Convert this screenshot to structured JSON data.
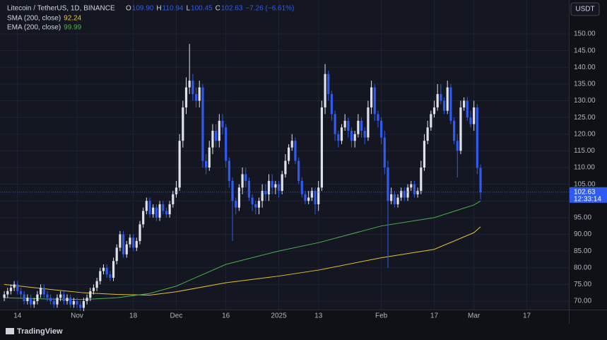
{
  "chart_data": {
    "type": "candlestick",
    "symbol": "Litecoin / TetherUS, 1D, BINANCE",
    "legend": [
      {
        "key": "O",
        "value": "109.90"
      },
      {
        "key": "H",
        "value": "110.94"
      },
      {
        "key": "L",
        "value": "100.45"
      },
      {
        "key": "C",
        "value": "102.63"
      }
    ],
    "change": "−7.26 (−6.61%)",
    "currency": "USDT",
    "countdown": "12:33:14",
    "brand": "TradingView",
    "up_color": "#dfe2ea",
    "down_color": "#2f5bf0",
    "x": [
      -4,
      -3,
      -2,
      -1,
      0,
      1,
      2,
      3,
      4,
      5,
      6,
      7,
      8,
      9,
      10,
      11,
      12,
      13,
      14,
      15,
      16,
      17,
      18,
      19,
      20,
      21,
      22,
      23,
      24,
      25,
      26,
      27,
      28,
      29,
      30,
      31,
      32,
      33,
      34,
      35,
      36,
      37,
      38,
      39,
      40,
      41,
      42,
      43,
      44,
      45,
      46,
      47,
      48,
      49,
      50,
      51,
      52,
      53,
      54,
      55,
      56,
      57,
      58,
      59,
      60,
      61,
      62,
      63,
      64,
      65,
      66,
      67,
      68,
      69,
      70,
      71,
      72,
      73,
      74,
      75,
      76,
      77,
      78,
      79,
      80,
      81,
      82,
      83,
      84,
      85,
      86,
      87,
      88,
      89,
      90,
      91,
      92,
      93,
      94,
      95,
      96,
      97,
      98,
      99,
      100,
      101,
      102,
      103,
      104,
      105,
      106,
      107,
      108,
      109,
      110,
      111,
      112,
      113,
      114,
      115,
      116,
      117,
      118,
      119,
      120,
      121,
      122,
      123,
      124,
      125,
      126,
      127,
      128,
      129,
      130,
      131,
      132,
      133,
      134,
      135,
      136,
      137,
      138,
      139,
      140
    ],
    "open": [
      71,
      72,
      73,
      74,
      75,
      73,
      72,
      70,
      71,
      69,
      70,
      72,
      74,
      72,
      71,
      70,
      69,
      71,
      72,
      70,
      71,
      69,
      70,
      69,
      68,
      70,
      71,
      73,
      74,
      76,
      79,
      80,
      78,
      77,
      82,
      86,
      90,
      84,
      87,
      89,
      86,
      88,
      93,
      97,
      100,
      96,
      98,
      95,
      99,
      97,
      96,
      99,
      102,
      104,
      118,
      128,
      134,
      136,
      132,
      130,
      134,
      112,
      110,
      116,
      121,
      118,
      124,
      122,
      112,
      106,
      100,
      98,
      104,
      108,
      106,
      101,
      99,
      98,
      100,
      103,
      102,
      106,
      104,
      105,
      103,
      108,
      112,
      116,
      118,
      112,
      106,
      102,
      100,
      101,
      103,
      99,
      104,
      128,
      138,
      132,
      126,
      120,
      118,
      122,
      124,
      121,
      118,
      120,
      124,
      121,
      119,
      128,
      134,
      126,
      124,
      119,
      110,
      100,
      102,
      99,
      101,
      103,
      101,
      104,
      105,
      102,
      103,
      110,
      118,
      122,
      126,
      128,
      132,
      130,
      127,
      134,
      124,
      118,
      115,
      128,
      130,
      125,
      123,
      128,
      109.9
    ],
    "high": [
      73,
      74,
      75,
      76,
      76,
      74,
      73,
      72,
      72,
      71,
      73,
      75,
      75,
      73,
      72,
      71,
      72,
      73,
      73,
      72,
      72,
      71,
      71,
      70,
      71,
      72,
      74,
      75,
      77,
      80,
      81,
      81,
      79,
      83,
      87,
      91,
      91,
      88,
      90,
      90,
      89,
      94,
      98,
      101,
      101,
      99,
      99,
      100,
      100,
      98,
      100,
      103,
      106,
      120,
      130,
      137,
      147,
      138,
      134,
      136,
      135,
      114,
      118,
      123,
      123,
      126,
      126,
      123,
      113,
      107,
      101,
      105,
      110,
      110,
      107,
      102,
      100,
      101,
      105,
      105,
      108,
      108,
      106,
      106,
      109,
      114,
      117,
      120,
      119,
      113,
      107,
      103,
      103,
      104,
      104,
      106,
      130,
      141,
      139,
      133,
      127,
      121,
      123,
      126,
      125,
      122,
      121,
      126,
      125,
      122,
      130,
      136,
      135,
      127,
      125,
      121,
      112,
      104,
      103,
      102,
      104,
      104,
      105,
      106,
      106,
      104,
      112,
      120,
      124,
      127,
      130,
      135,
      135,
      131,
      136,
      135,
      125,
      120,
      130,
      131,
      131,
      127,
      130,
      129,
      110.94
    ],
    "low": [
      70,
      71,
      72,
      73,
      72,
      71,
      69,
      69,
      68,
      68,
      69,
      71,
      71,
      70,
      69,
      68,
      68,
      70,
      69,
      69,
      68,
      68,
      68,
      67,
      67,
      69,
      70,
      72,
      73,
      75,
      78,
      77,
      76,
      76,
      81,
      85,
      83,
      83,
      86,
      85,
      85,
      87,
      92,
      96,
      95,
      95,
      94,
      94,
      96,
      95,
      95,
      98,
      101,
      103,
      116,
      126,
      132,
      130,
      128,
      128,
      110,
      108,
      109,
      114,
      116,
      116,
      120,
      110,
      104,
      88,
      96,
      97,
      102,
      104,
      100,
      97,
      96,
      96,
      98,
      100,
      100,
      102,
      102,
      101,
      102,
      107,
      111,
      115,
      111,
      105,
      101,
      99,
      99,
      100,
      96,
      97,
      103,
      126,
      130,
      124,
      118,
      116,
      117,
      121,
      119,
      116,
      116,
      119,
      119,
      117,
      118,
      126,
      124,
      122,
      117,
      108,
      80,
      99,
      98,
      98,
      100,
      100,
      100,
      103,
      101,
      101,
      102,
      109,
      117,
      121,
      125,
      127,
      129,
      126,
      126,
      123,
      117,
      107,
      114,
      127,
      124,
      122,
      121,
      108,
      100.45
    ],
    "close": [
      72,
      73,
      74,
      75,
      73,
      72,
      70,
      71,
      69,
      70,
      72,
      74,
      72,
      71,
      70,
      69,
      71,
      72,
      70,
      71,
      69,
      70,
      69,
      68,
      70,
      71,
      73,
      74,
      76,
      79,
      80,
      78,
      77,
      82,
      86,
      90,
      84,
      87,
      89,
      86,
      88,
      93,
      97,
      100,
      96,
      98,
      95,
      99,
      97,
      96,
      99,
      102,
      104,
      118,
      128,
      134,
      136,
      132,
      130,
      134,
      112,
      110,
      116,
      121,
      118,
      124,
      122,
      112,
      106,
      100,
      98,
      104,
      108,
      106,
      101,
      99,
      98,
      100,
      103,
      102,
      106,
      104,
      105,
      103,
      108,
      112,
      116,
      118,
      112,
      106,
      102,
      100,
      101,
      103,
      99,
      104,
      128,
      138,
      132,
      126,
      120,
      118,
      122,
      124,
      121,
      118,
      120,
      124,
      121,
      119,
      128,
      134,
      126,
      124,
      119,
      110,
      100,
      102,
      99,
      101,
      103,
      101,
      104,
      105,
      102,
      103,
      110,
      118,
      122,
      126,
      128,
      132,
      130,
      127,
      134,
      124,
      118,
      115,
      128,
      130,
      125,
      123,
      128,
      109.9,
      102.63
    ],
    "indicators": [
      {
        "name": "SMA (200, close)",
        "color": "#e6c229",
        "x": [
          -4,
          10,
          20,
          30,
          40,
          48,
          63,
          79,
          91,
          110,
          126,
          138,
          140
        ],
        "values": [
          75,
          73.5,
          72.5,
          72,
          71.8,
          72.8,
          75.5,
          77.5,
          79.3,
          83,
          85.5,
          90.5,
          92.24
        ]
      },
      {
        "name": "EMA (200, close)",
        "color": "#4caf50",
        "x": [
          -4,
          10,
          20,
          30,
          40,
          48,
          63,
          79,
          91,
          110,
          126,
          138,
          140
        ],
        "values": [
          71,
          70.6,
          70.5,
          71,
          72.3,
          74.5,
          81,
          85,
          87.5,
          92.5,
          95,
          98.8,
          99.99
        ]
      }
    ],
    "xlim": [
      -5.3,
      166.7
    ],
    "xticks": [
      {
        "value": 0,
        "label": "14"
      },
      {
        "value": 18,
        "label": "Nov"
      },
      {
        "value": 35,
        "label": "18"
      },
      {
        "value": 48,
        "label": "Dec"
      },
      {
        "value": 63,
        "label": "16"
      },
      {
        "value": 79,
        "label": "2025"
      },
      {
        "value": 91,
        "label": "13"
      },
      {
        "value": 110,
        "label": "Feb"
      },
      {
        "value": 126,
        "label": "17"
      },
      {
        "value": 138,
        "label": "Mar"
      },
      {
        "value": 154,
        "label": "17"
      }
    ],
    "ylim": [
      67.46,
      160.16
    ],
    "yticks": [
      {
        "value": 70,
        "label": "70.00"
      },
      {
        "value": 75,
        "label": "75.00"
      },
      {
        "value": 80,
        "label": "80.00"
      },
      {
        "value": 85,
        "label": "85.00"
      },
      {
        "value": 90,
        "label": "90.00"
      },
      {
        "value": 95,
        "label": "95.00"
      },
      {
        "value": 100,
        "label": "100.00"
      },
      {
        "value": 105,
        "label": "105.00"
      },
      {
        "value": 110,
        "label": "110.00"
      },
      {
        "value": 115,
        "label": "115.00"
      },
      {
        "value": 120,
        "label": "120.00"
      },
      {
        "value": 125,
        "label": "125.00"
      },
      {
        "value": 130,
        "label": "130.00"
      },
      {
        "value": 135,
        "label": "135.00"
      },
      {
        "value": 140,
        "label": "140.00"
      },
      {
        "value": 145,
        "label": "145.00"
      },
      {
        "value": 150,
        "label": "150.00"
      }
    ],
    "grid": true
  }
}
